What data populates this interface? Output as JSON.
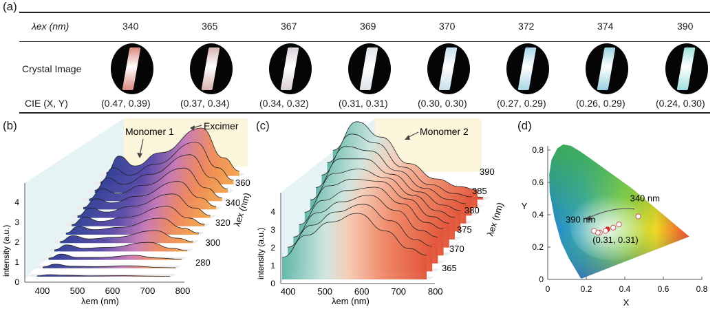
{
  "panel_a": {
    "label": "(a)",
    "row_labels": {
      "lambda_ex": "λex (nm)",
      "crystal": "Crystal Image",
      "cie": "CIE (X, Y)"
    },
    "columns": [
      {
        "wavelength": "340",
        "cie": "(0.47, 0.39)",
        "color": "#d98a80"
      },
      {
        "wavelength": "365",
        "cie": "(0.37, 0.34)",
        "color": "#d6b4b0"
      },
      {
        "wavelength": "367",
        "cie": "(0.34, 0.32)",
        "color": "#d9cfd8"
      },
      {
        "wavelength": "369",
        "cie": "(0.31, 0.31)",
        "color": "#dfe4ea"
      },
      {
        "wavelength": "370",
        "cie": "(0.30, 0.30)",
        "color": "#c9dfee"
      },
      {
        "wavelength": "372",
        "cie": "(0.27, 0.29)",
        "color": "#a9d6e6"
      },
      {
        "wavelength": "374",
        "cie": "(0.26, 0.29)",
        "color": "#9ad2e0"
      },
      {
        "wavelength": "390",
        "cie": "(0.24, 0.30)",
        "color": "#9fe0dc"
      }
    ]
  },
  "panel_b": {
    "label": "(b)",
    "annotations": {
      "monomer": "Monomer 1",
      "excimer": "Excimer"
    },
    "colors": {
      "monomer": "#2d4f9e",
      "excimer": "#e0662a"
    },
    "chart_data": {
      "type": "area",
      "xlabel": "λem (nm)",
      "ylabel": "intensity (a.u.)",
      "zlabel": "λex (nm)",
      "xticks": [
        "400",
        "500",
        "600",
        "700",
        "800"
      ],
      "yticks": [
        "0",
        "1",
        "2",
        "3",
        "4"
      ],
      "zticks": [
        "280",
        "300",
        "320",
        "340",
        "360"
      ],
      "xlim": [
        350,
        800
      ],
      "ylim": [
        0,
        4
      ],
      "series": [
        {
          "ex": 270,
          "values": [
            [
              380,
              0.05
            ],
            [
              420,
              0.12
            ],
            [
              470,
              0.08
            ],
            [
              550,
              0.05
            ],
            [
              650,
              0.06
            ],
            [
              750,
              0.03
            ],
            [
              800,
              0.02
            ]
          ]
        },
        {
          "ex": 280,
          "values": [
            [
              380,
              0.08
            ],
            [
              420,
              0.25
            ],
            [
              470,
              0.12
            ],
            [
              550,
              0.1
            ],
            [
              650,
              0.15
            ],
            [
              750,
              0.05
            ],
            [
              800,
              0.03
            ]
          ]
        },
        {
          "ex": 290,
          "values": [
            [
              380,
              0.1
            ],
            [
              420,
              0.35
            ],
            [
              470,
              0.15
            ],
            [
              550,
              0.15
            ],
            [
              650,
              0.28
            ],
            [
              720,
              0.12
            ],
            [
              800,
              0.04
            ]
          ]
        },
        {
          "ex": 300,
          "values": [
            [
              380,
              0.1
            ],
            [
              420,
              0.4
            ],
            [
              470,
              0.2
            ],
            [
              550,
              0.25
            ],
            [
              680,
              0.55
            ],
            [
              750,
              0.2
            ],
            [
              800,
              0.05
            ]
          ]
        },
        {
          "ex": 310,
          "values": [
            [
              380,
              0.1
            ],
            [
              420,
              0.45
            ],
            [
              470,
              0.25
            ],
            [
              550,
              0.35
            ],
            [
              680,
              0.75
            ],
            [
              750,
              0.3
            ],
            [
              800,
              0.08
            ]
          ]
        },
        {
          "ex": 320,
          "values": [
            [
              380,
              0.1
            ],
            [
              420,
              0.5
            ],
            [
              470,
              0.3
            ],
            [
              550,
              0.45
            ],
            [
              680,
              1.0
            ],
            [
              750,
              0.4
            ],
            [
              800,
              0.1
            ]
          ]
        },
        {
          "ex": 330,
          "values": [
            [
              380,
              0.1
            ],
            [
              420,
              0.55
            ],
            [
              470,
              0.3
            ],
            [
              550,
              0.55
            ],
            [
              680,
              1.2
            ],
            [
              750,
              0.5
            ],
            [
              800,
              0.12
            ]
          ]
        },
        {
          "ex": 340,
          "values": [
            [
              380,
              0.12
            ],
            [
              420,
              0.6
            ],
            [
              470,
              0.35
            ],
            [
              550,
              0.7
            ],
            [
              680,
              1.45
            ],
            [
              750,
              0.6
            ],
            [
              800,
              0.15
            ]
          ]
        },
        {
          "ex": 345,
          "values": [
            [
              380,
              0.12
            ],
            [
              420,
              0.65
            ],
            [
              470,
              0.4
            ],
            [
              550,
              0.8
            ],
            [
              680,
              1.7
            ],
            [
              750,
              0.7
            ],
            [
              800,
              0.18
            ]
          ]
        },
        {
          "ex": 350,
          "values": [
            [
              380,
              0.12
            ],
            [
              420,
              0.75
            ],
            [
              470,
              0.45
            ],
            [
              550,
              0.95
            ],
            [
              680,
              2.0
            ],
            [
              750,
              0.8
            ],
            [
              800,
              0.2
            ]
          ]
        },
        {
          "ex": 355,
          "values": [
            [
              380,
              0.15
            ],
            [
              420,
              0.9
            ],
            [
              470,
              0.5
            ],
            [
              550,
              1.1
            ],
            [
              680,
              2.3
            ],
            [
              750,
              0.9
            ],
            [
              800,
              0.22
            ]
          ]
        },
        {
          "ex": 360,
          "values": [
            [
              380,
              0.15
            ],
            [
              420,
              1.0
            ],
            [
              470,
              0.55
            ],
            [
              550,
              1.2
            ],
            [
              680,
              2.55
            ],
            [
              750,
              1.0
            ],
            [
              800,
              0.25
            ]
          ]
        },
        {
          "ex": 365,
          "values": [
            [
              380,
              0.2
            ],
            [
              420,
              1.2
            ],
            [
              470,
              0.6
            ],
            [
              550,
              1.4
            ],
            [
              680,
              2.9
            ],
            [
              750,
              1.1
            ],
            [
              800,
              0.3
            ]
          ]
        }
      ]
    }
  },
  "panel_c": {
    "label": "(c)",
    "annotations": {
      "monomer": "Monomer 2"
    },
    "colors": {
      "monomer": "#2f8e8a",
      "tail": "#e5583a"
    },
    "chart_data": {
      "type": "area",
      "xlabel": "λem (nm)",
      "ylabel": "intensity (a.u.)",
      "zlabel": "λex (nm)",
      "xticks": [
        "400",
        "500",
        "600",
        "700",
        "800"
      ],
      "yticks": [
        "0",
        "1",
        "2",
        "3",
        "4"
      ],
      "zticks": [
        "365",
        "370",
        "375",
        "380",
        "385",
        "390"
      ],
      "xlim": [
        380,
        800
      ],
      "ylim": [
        0,
        4
      ],
      "series": [
        {
          "ex": 362,
          "values": [
            [
              380,
              1.0
            ],
            [
              450,
              2.0
            ],
            [
              520,
              2.6
            ],
            [
              600,
              3.0
            ],
            [
              680,
              2.2
            ],
            [
              750,
              1.4
            ],
            [
              800,
              1.1
            ]
          ]
        },
        {
          "ex": 364,
          "values": [
            [
              380,
              1.1
            ],
            [
              450,
              2.1
            ],
            [
              520,
              2.7
            ],
            [
              600,
              3.05
            ],
            [
              680,
              2.3
            ],
            [
              750,
              1.45
            ],
            [
              800,
              1.15
            ]
          ]
        },
        {
          "ex": 366,
          "values": [
            [
              380,
              1.2
            ],
            [
              450,
              2.3
            ],
            [
              520,
              2.8
            ],
            [
              600,
              3.1
            ],
            [
              680,
              2.4
            ],
            [
              750,
              1.5
            ],
            [
              800,
              1.2
            ]
          ]
        },
        {
          "ex": 368,
          "values": [
            [
              380,
              1.4
            ],
            [
              450,
              2.5
            ],
            [
              520,
              2.95
            ],
            [
              600,
              3.1
            ],
            [
              680,
              2.35
            ],
            [
              750,
              1.5
            ],
            [
              800,
              1.2
            ]
          ]
        },
        {
          "ex": 370,
          "values": [
            [
              380,
              1.6
            ],
            [
              450,
              2.8
            ],
            [
              520,
              3.1
            ],
            [
              600,
              3.0
            ],
            [
              680,
              2.2
            ],
            [
              750,
              1.4
            ],
            [
              800,
              1.1
            ]
          ]
        },
        {
          "ex": 372,
          "values": [
            [
              380,
              1.8
            ],
            [
              450,
              3.0
            ],
            [
              520,
              3.2
            ],
            [
              600,
              2.8
            ],
            [
              680,
              2.0
            ],
            [
              750,
              1.3
            ],
            [
              800,
              1.0
            ]
          ]
        },
        {
          "ex": 374,
          "values": [
            [
              380,
              2.0
            ],
            [
              450,
              3.3
            ],
            [
              520,
              3.3
            ],
            [
              600,
              2.6
            ],
            [
              680,
              1.8
            ],
            [
              750,
              1.2
            ],
            [
              800,
              0.95
            ]
          ]
        },
        {
          "ex": 376,
          "values": [
            [
              380,
              2.2
            ],
            [
              450,
              3.5
            ],
            [
              520,
              3.3
            ],
            [
              600,
              2.4
            ],
            [
              680,
              1.6
            ],
            [
              750,
              1.1
            ],
            [
              800,
              0.9
            ]
          ]
        },
        {
          "ex": 378,
          "values": [
            [
              380,
              2.4
            ],
            [
              450,
              3.7
            ],
            [
              520,
              3.3
            ],
            [
              600,
              2.2
            ],
            [
              680,
              1.4
            ],
            [
              750,
              1.0
            ],
            [
              800,
              0.85
            ]
          ]
        },
        {
          "ex": 380,
          "values": [
            [
              380,
              2.6
            ],
            [
              450,
              3.9
            ],
            [
              520,
              3.2
            ],
            [
              600,
              2.0
            ],
            [
              680,
              1.3
            ],
            [
              750,
              0.95
            ],
            [
              800,
              0.8
            ]
          ]
        },
        {
          "ex": 390,
          "values": [
            [
              380,
              0.4
            ],
            [
              450,
              1.8
            ],
            [
              520,
              2.0
            ],
            [
              600,
              0.9
            ],
            [
              680,
              0.4
            ],
            [
              750,
              0.2
            ],
            [
              800,
              0.1
            ]
          ]
        }
      ]
    }
  },
  "panel_d": {
    "label": "(d)",
    "chart_data": {
      "type": "scatter",
      "xlabel": "X",
      "ylabel": "Y",
      "xlim": [
        0,
        0.8
      ],
      "ylim": [
        0,
        0.9
      ],
      "xticks": [
        "0",
        "0.2",
        "0.4",
        "0.6",
        "0.8"
      ],
      "yticks": [
        "0",
        "0.2",
        "0.4",
        "0.6",
        "0.8"
      ],
      "points": [
        {
          "x": 0.47,
          "y": 0.39
        },
        {
          "x": 0.37,
          "y": 0.34
        },
        {
          "x": 0.34,
          "y": 0.32
        },
        {
          "x": 0.31,
          "y": 0.31,
          "highlight": true
        },
        {
          "x": 0.3,
          "y": 0.3
        },
        {
          "x": 0.27,
          "y": 0.29
        },
        {
          "x": 0.26,
          "y": 0.29
        },
        {
          "x": 0.24,
          "y": 0.3
        }
      ],
      "annotations": {
        "start": "340 nm",
        "end": "390 nm",
        "center": "(0.31, 0.31)"
      }
    }
  }
}
